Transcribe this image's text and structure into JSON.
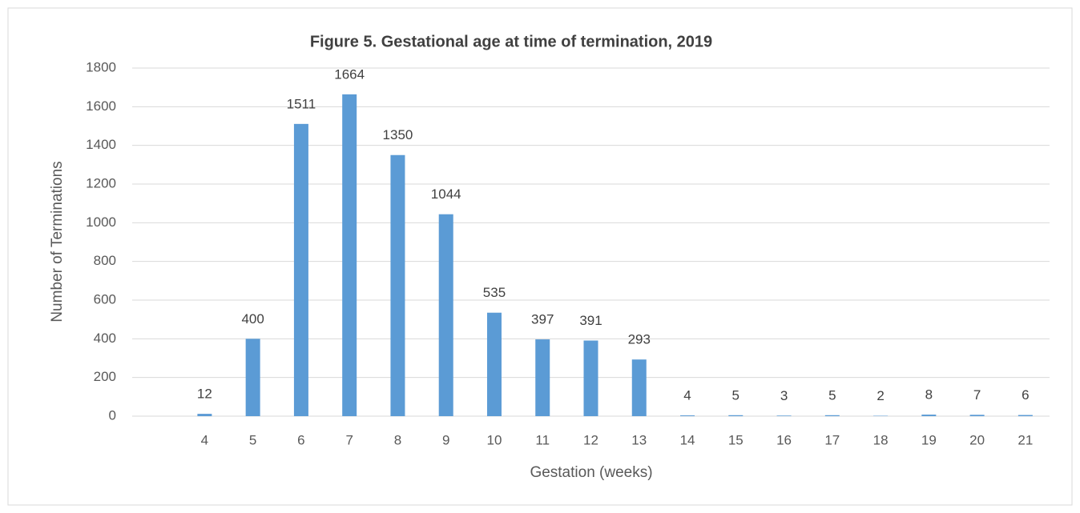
{
  "chart_data": {
    "type": "bar",
    "title": "Figure 5. Gestational age at time of termination, 2019",
    "x_label": "Gestation (weeks)",
    "y_label": "Number of Terminations",
    "categories": [
      null,
      "4",
      "5",
      "6",
      "7",
      "8",
      "9",
      "10",
      "11",
      "12",
      "13",
      "14",
      "15",
      "16",
      "17",
      "18",
      "19",
      "20",
      "21"
    ],
    "values": [
      null,
      12,
      400,
      1511,
      1664,
      1350,
      1044,
      535,
      397,
      391,
      293,
      4,
      5,
      3,
      5,
      2,
      8,
      7,
      6
    ],
    "color": "#5b9bd5",
    "ylim": [
      0,
      1800
    ],
    "yticks": [
      0,
      200,
      400,
      600,
      800,
      1000,
      1200,
      1400,
      1600,
      1800
    ],
    "grid": true
  }
}
